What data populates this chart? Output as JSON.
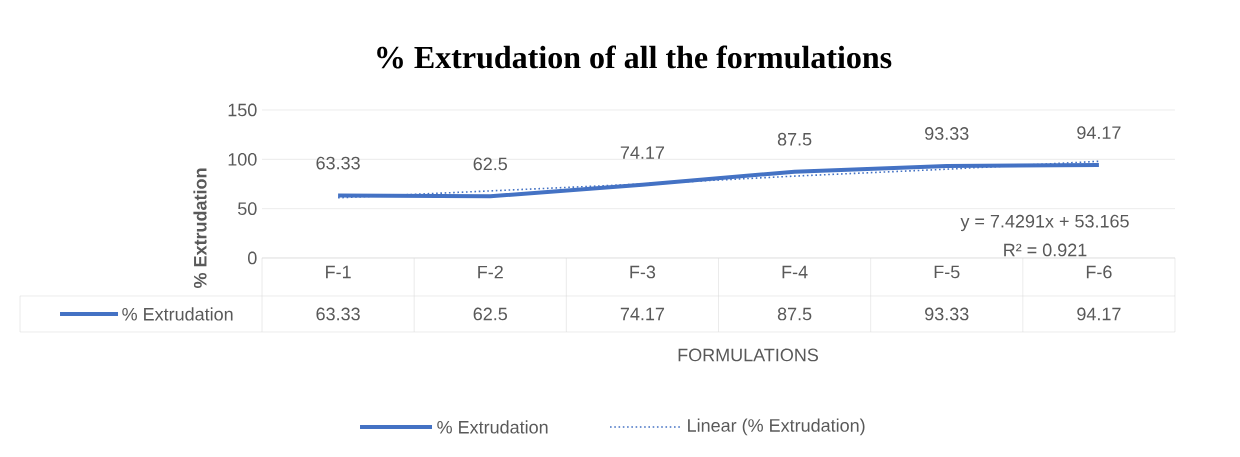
{
  "chart_data": {
    "type": "line",
    "title": "% Extrudation of all the formulations",
    "xlabel": "FORMULATIONS",
    "ylabel": "% Extrudation",
    "categories": [
      "F-1",
      "F-2",
      "F-3",
      "F-4",
      "F-5",
      "F-6"
    ],
    "series": [
      {
        "name": "% Extrudation",
        "color": "#4472c4",
        "values": [
          63.33,
          62.5,
          74.17,
          87.5,
          93.33,
          94.17
        ],
        "line_style": "solid",
        "value_labels": [
          "63.33",
          "62.5",
          "74.17",
          "87.5",
          "93.33",
          "94.17"
        ]
      },
      {
        "name": "Linear (% Extrudation)",
        "color": "#4472c4",
        "values": [
          61,
          68,
          75,
          83,
          90,
          98
        ],
        "line_style": "dotted"
      }
    ],
    "ylim": [
      0,
      150
    ],
    "yticks": [
      0,
      50,
      100,
      150
    ],
    "grid": "y",
    "legend": "bottom",
    "marker": "none",
    "annotations": [
      "y = 7.4291x + 53.165",
      "R² = 0.921"
    ]
  }
}
